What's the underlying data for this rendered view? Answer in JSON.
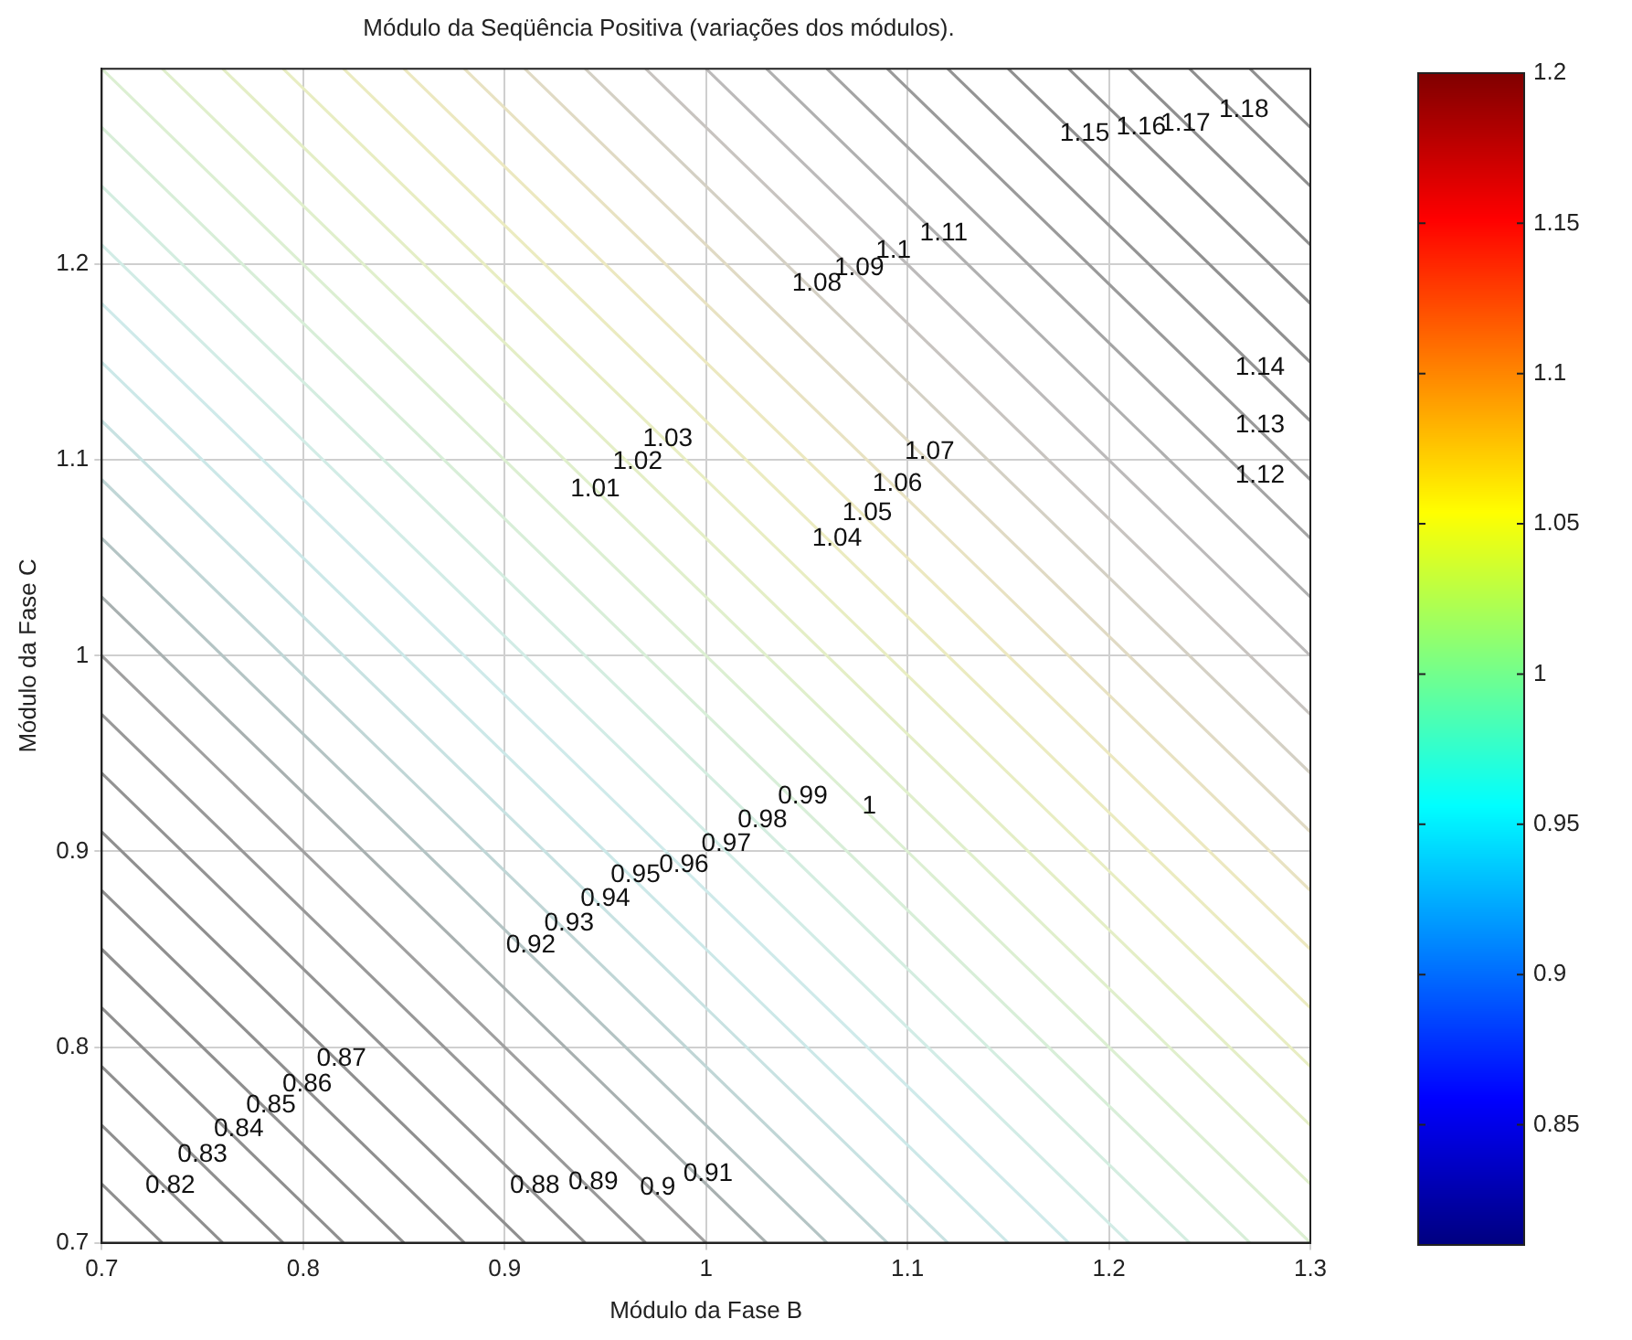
{
  "chart_data": {
    "type": "line",
    "title": "Módulo da Seqüência Positiva (variações dos módulos).",
    "xlabel": "Módulo da Fase B",
    "ylabel": "Módulo da Fase C",
    "xlim": [
      0.7,
      1.3
    ],
    "xticks": [
      0.7,
      0.8,
      0.9,
      1,
      1.1,
      1.2,
      1.3
    ],
    "ylim": [
      0.7,
      1.3
    ],
    "yticks": [
      0.7,
      0.8,
      0.9,
      1,
      1.1,
      1.2
    ],
    "grid": true,
    "legend": false,
    "marker": "none",
    "line_style": "solid",
    "clim": [
      0.81,
      1.2
    ],
    "cticks": [
      0.85,
      0.9,
      0.95,
      1,
      1.05,
      1.1,
      1.15,
      1.2
    ],
    "series": [
      {
        "color": "#8f8f8f",
        "x": [
          0.7,
          0.73
        ],
        "values": [
          0.73,
          0.7
        ]
      },
      {
        "color": "#8f8f8f",
        "x": [
          0.7,
          0.76
        ],
        "values": [
          0.76,
          0.7
        ]
      },
      {
        "color": "#8f8f8f",
        "x": [
          0.7,
          0.79
        ],
        "values": [
          0.79,
          0.7
        ]
      },
      {
        "color": "#8f8f8f",
        "x": [
          0.7,
          0.82
        ],
        "values": [
          0.82,
          0.7
        ]
      },
      {
        "color": "#8f8f8f",
        "x": [
          0.7,
          0.85
        ],
        "values": [
          0.85,
          0.7
        ]
      },
      {
        "color": "#8f8f8f",
        "x": [
          0.7,
          0.88
        ],
        "values": [
          0.88,
          0.7
        ]
      },
      {
        "color": "#8f8f8f",
        "x": [
          0.7,
          0.91
        ],
        "values": [
          0.91,
          0.7
        ]
      },
      {
        "color": "#939393",
        "x": [
          0.7,
          0.94
        ],
        "values": [
          0.94,
          0.7
        ]
      },
      {
        "color": "#989898",
        "x": [
          0.7,
          0.97
        ],
        "values": [
          0.97,
          0.7
        ]
      },
      {
        "color": "#a0a0a0",
        "x": [
          0.7,
          1.0
        ],
        "values": [
          1.0,
          0.7
        ]
      },
      {
        "color": "#a8b0b0",
        "x": [
          0.7,
          1.03
        ],
        "values": [
          1.03,
          0.7
        ]
      },
      {
        "color": "#b4c4c4",
        "x": [
          0.7,
          1.06
        ],
        "values": [
          1.06,
          0.7
        ]
      },
      {
        "color": "#c0d6d6",
        "x": [
          0.7,
          1.09
        ],
        "values": [
          1.09,
          0.7
        ]
      },
      {
        "color": "#c8e2e2",
        "x": [
          0.7,
          1.12
        ],
        "values": [
          1.12,
          0.7
        ]
      },
      {
        "color": "#cce8e8",
        "x": [
          0.7,
          1.15
        ],
        "values": [
          1.15,
          0.7
        ]
      },
      {
        "color": "#cfeaea",
        "x": [
          0.7,
          1.18
        ],
        "values": [
          1.18,
          0.7
        ]
      },
      {
        "color": "#d2ece6",
        "x": [
          0.7,
          1.21
        ],
        "values": [
          1.21,
          0.7
        ]
      },
      {
        "color": "#d4ede0",
        "x": [
          0.7,
          1.24
        ],
        "values": [
          1.24,
          0.7
        ]
      },
      {
        "color": "#d8eed8",
        "x": [
          0.7,
          1.27
        ],
        "values": [
          1.27,
          0.7
        ]
      },
      {
        "color": "#dcefd2",
        "x": [
          0.7,
          1.3
        ],
        "values": [
          1.3,
          0.7
        ]
      },
      {
        "color": "#e0efcc",
        "x": [
          0.73,
          1.3
        ],
        "values": [
          1.3,
          0.73
        ]
      },
      {
        "color": "#e4eec6",
        "x": [
          0.76,
          1.3
        ],
        "values": [
          1.3,
          0.76
        ]
      },
      {
        "color": "#e8edc2",
        "x": [
          0.79,
          1.3
        ],
        "values": [
          1.3,
          0.79
        ]
      },
      {
        "color": "#ebebc0",
        "x": [
          0.82,
          1.3
        ],
        "values": [
          1.3,
          0.82
        ]
      },
      {
        "color": "#ece8c0",
        "x": [
          0.85,
          1.3
        ],
        "values": [
          1.3,
          0.85
        ]
      },
      {
        "color": "#e8e2c2",
        "x": [
          0.88,
          1.3
        ],
        "values": [
          1.3,
          0.88
        ]
      },
      {
        "color": "#e0dac4",
        "x": [
          0.91,
          1.3
        ],
        "values": [
          1.3,
          0.91
        ]
      },
      {
        "color": "#d4d0c4",
        "x": [
          0.94,
          1.3
        ],
        "values": [
          1.3,
          0.94
        ]
      },
      {
        "color": "#c8c4c0",
        "x": [
          0.97,
          1.3
        ],
        "values": [
          1.3,
          0.97
        ]
      },
      {
        "color": "#bcbaba",
        "x": [
          1.0,
          1.3
        ],
        "values": [
          1.3,
          1.0
        ]
      },
      {
        "color": "#b0b0b0",
        "x": [
          1.03,
          1.3
        ],
        "values": [
          1.3,
          1.03
        ]
      },
      {
        "color": "#a4a4a4",
        "x": [
          1.06,
          1.3
        ],
        "values": [
          1.3,
          1.06
        ]
      },
      {
        "color": "#9a9a9a",
        "x": [
          1.09,
          1.3
        ],
        "values": [
          1.3,
          1.09
        ]
      },
      {
        "color": "#949494",
        "x": [
          1.12,
          1.3
        ],
        "values": [
          1.3,
          1.12
        ]
      },
      {
        "color": "#909090",
        "x": [
          1.15,
          1.3
        ],
        "values": [
          1.3,
          1.15
        ]
      },
      {
        "color": "#8f8f8f",
        "x": [
          1.18,
          1.3
        ],
        "values": [
          1.3,
          1.18
        ]
      },
      {
        "color": "#8f8f8f",
        "x": [
          1.21,
          1.3
        ],
        "values": [
          1.3,
          1.21
        ]
      },
      {
        "color": "#8f8f8f",
        "x": [
          1.24,
          1.3
        ],
        "values": [
          1.3,
          1.24
        ]
      },
      {
        "color": "#8f8f8f",
        "x": [
          1.27,
          1.3
        ],
        "values": [
          1.3,
          1.27
        ]
      }
    ],
    "annotations": [
      {
        "text": "0.82",
        "x": 0.734,
        "y": 0.729
      },
      {
        "text": "0.83",
        "x": 0.75,
        "y": 0.745
      },
      {
        "text": "0.84",
        "x": 0.768,
        "y": 0.758
      },
      {
        "text": "0.85",
        "x": 0.784,
        "y": 0.77
      },
      {
        "text": "0.86",
        "x": 0.802,
        "y": 0.781
      },
      {
        "text": "0.87",
        "x": 0.819,
        "y": 0.794
      },
      {
        "text": "0.88",
        "x": 0.915,
        "y": 0.729
      },
      {
        "text": "0.89",
        "x": 0.944,
        "y": 0.731
      },
      {
        "text": "0.9",
        "x": 0.976,
        "y": 0.728
      },
      {
        "text": "0.91",
        "x": 1.001,
        "y": 0.735
      },
      {
        "text": "0.92",
        "x": 0.913,
        "y": 0.852
      },
      {
        "text": "0.93",
        "x": 0.932,
        "y": 0.863
      },
      {
        "text": "0.94",
        "x": 0.95,
        "y": 0.876
      },
      {
        "text": "0.95",
        "x": 0.965,
        "y": 0.888
      },
      {
        "text": "0.96",
        "x": 0.989,
        "y": 0.893
      },
      {
        "text": "0.97",
        "x": 1.01,
        "y": 0.904
      },
      {
        "text": "0.98",
        "x": 1.028,
        "y": 0.916
      },
      {
        "text": "0.99",
        "x": 1.048,
        "y": 0.928
      },
      {
        "text": "1",
        "x": 1.081,
        "y": 0.923
      },
      {
        "text": "1.01",
        "x": 0.945,
        "y": 1.085
      },
      {
        "text": "1.02",
        "x": 0.966,
        "y": 1.099
      },
      {
        "text": "1.03",
        "x": 0.981,
        "y": 1.111
      },
      {
        "text": "1.04",
        "x": 1.065,
        "y": 1.06
      },
      {
        "text": "1.05",
        "x": 1.08,
        "y": 1.073
      },
      {
        "text": "1.06",
        "x": 1.095,
        "y": 1.088
      },
      {
        "text": "1.07",
        "x": 1.111,
        "y": 1.104
      },
      {
        "text": "1.08",
        "x": 1.055,
        "y": 1.19
      },
      {
        "text": "1.09",
        "x": 1.076,
        "y": 1.198
      },
      {
        "text": "1.1",
        "x": 1.093,
        "y": 1.207
      },
      {
        "text": "1.11",
        "x": 1.118,
        "y": 1.216
      },
      {
        "text": "1.12",
        "x": 1.275,
        "y": 1.092
      },
      {
        "text": "1.13",
        "x": 1.275,
        "y": 1.118
      },
      {
        "text": "1.14",
        "x": 1.275,
        "y": 1.147
      },
      {
        "text": "1.15",
        "x": 1.188,
        "y": 1.267
      },
      {
        "text": "1.16",
        "x": 1.216,
        "y": 1.27
      },
      {
        "text": "1.17",
        "x": 1.238,
        "y": 1.272
      },
      {
        "text": "1.18",
        "x": 1.267,
        "y": 1.279
      }
    ]
  }
}
